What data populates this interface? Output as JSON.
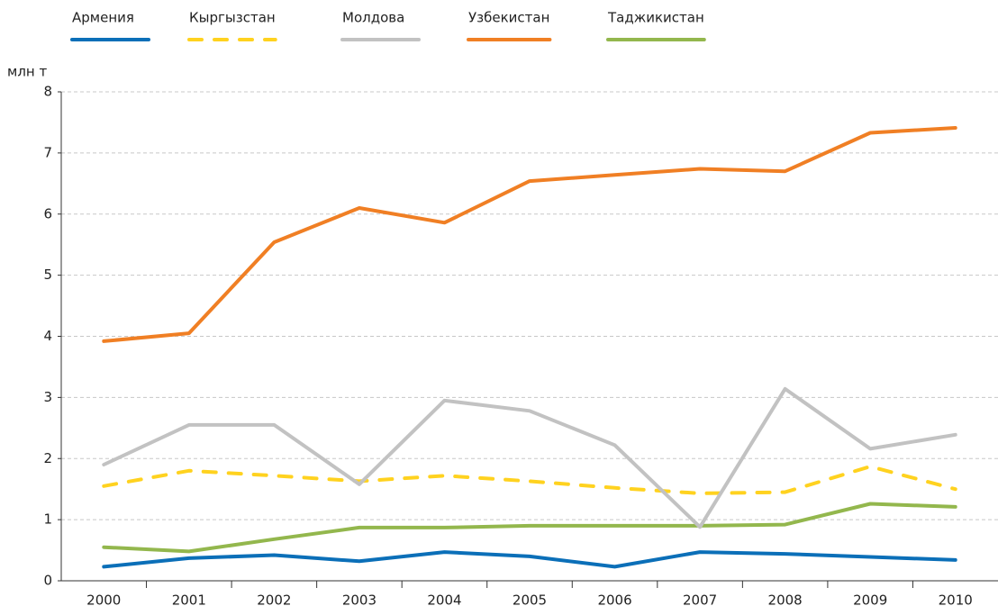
{
  "chart_data": {
    "type": "line",
    "y_label": "млн т",
    "categories": [
      "2000",
      "2001",
      "2002",
      "2003",
      "2004",
      "2005",
      "2006",
      "2007",
      "2008",
      "2009",
      "2010"
    ],
    "series": [
      {
        "name": "Армения",
        "color": "#0b6fb8",
        "style": "solid",
        "values": [
          0.23,
          0.37,
          0.42,
          0.32,
          0.47,
          0.4,
          0.23,
          0.47,
          0.44,
          0.39,
          0.34
        ]
      },
      {
        "name": "Кыргызстан",
        "color": "#ffd21f",
        "style": "dashed",
        "values": [
          1.55,
          1.8,
          1.72,
          1.63,
          1.72,
          1.63,
          1.52,
          1.43,
          1.45,
          1.87,
          1.5
        ]
      },
      {
        "name": "Молдова",
        "color": "#c2c2c2",
        "style": "solid",
        "values": [
          1.9,
          2.55,
          2.55,
          1.58,
          2.95,
          2.78,
          2.22,
          0.88,
          3.14,
          2.16,
          2.39
        ]
      },
      {
        "name": "Узбекистан",
        "color": "#f07f24",
        "style": "solid",
        "values": [
          3.92,
          4.05,
          5.54,
          6.1,
          5.86,
          6.54,
          6.64,
          6.74,
          6.7,
          7.33,
          7.41
        ]
      },
      {
        "name": "Таджикистан",
        "color": "#93b74d",
        "style": "solid",
        "values": [
          0.55,
          0.48,
          0.68,
          0.87,
          0.87,
          0.9,
          0.9,
          0.9,
          0.92,
          1.26,
          1.21
        ]
      }
    ],
    "ylim": [
      0,
      8
    ],
    "yticks": [
      0,
      1,
      2,
      3,
      4,
      5,
      6,
      7,
      8
    ],
    "grid": true,
    "legend": "top"
  }
}
